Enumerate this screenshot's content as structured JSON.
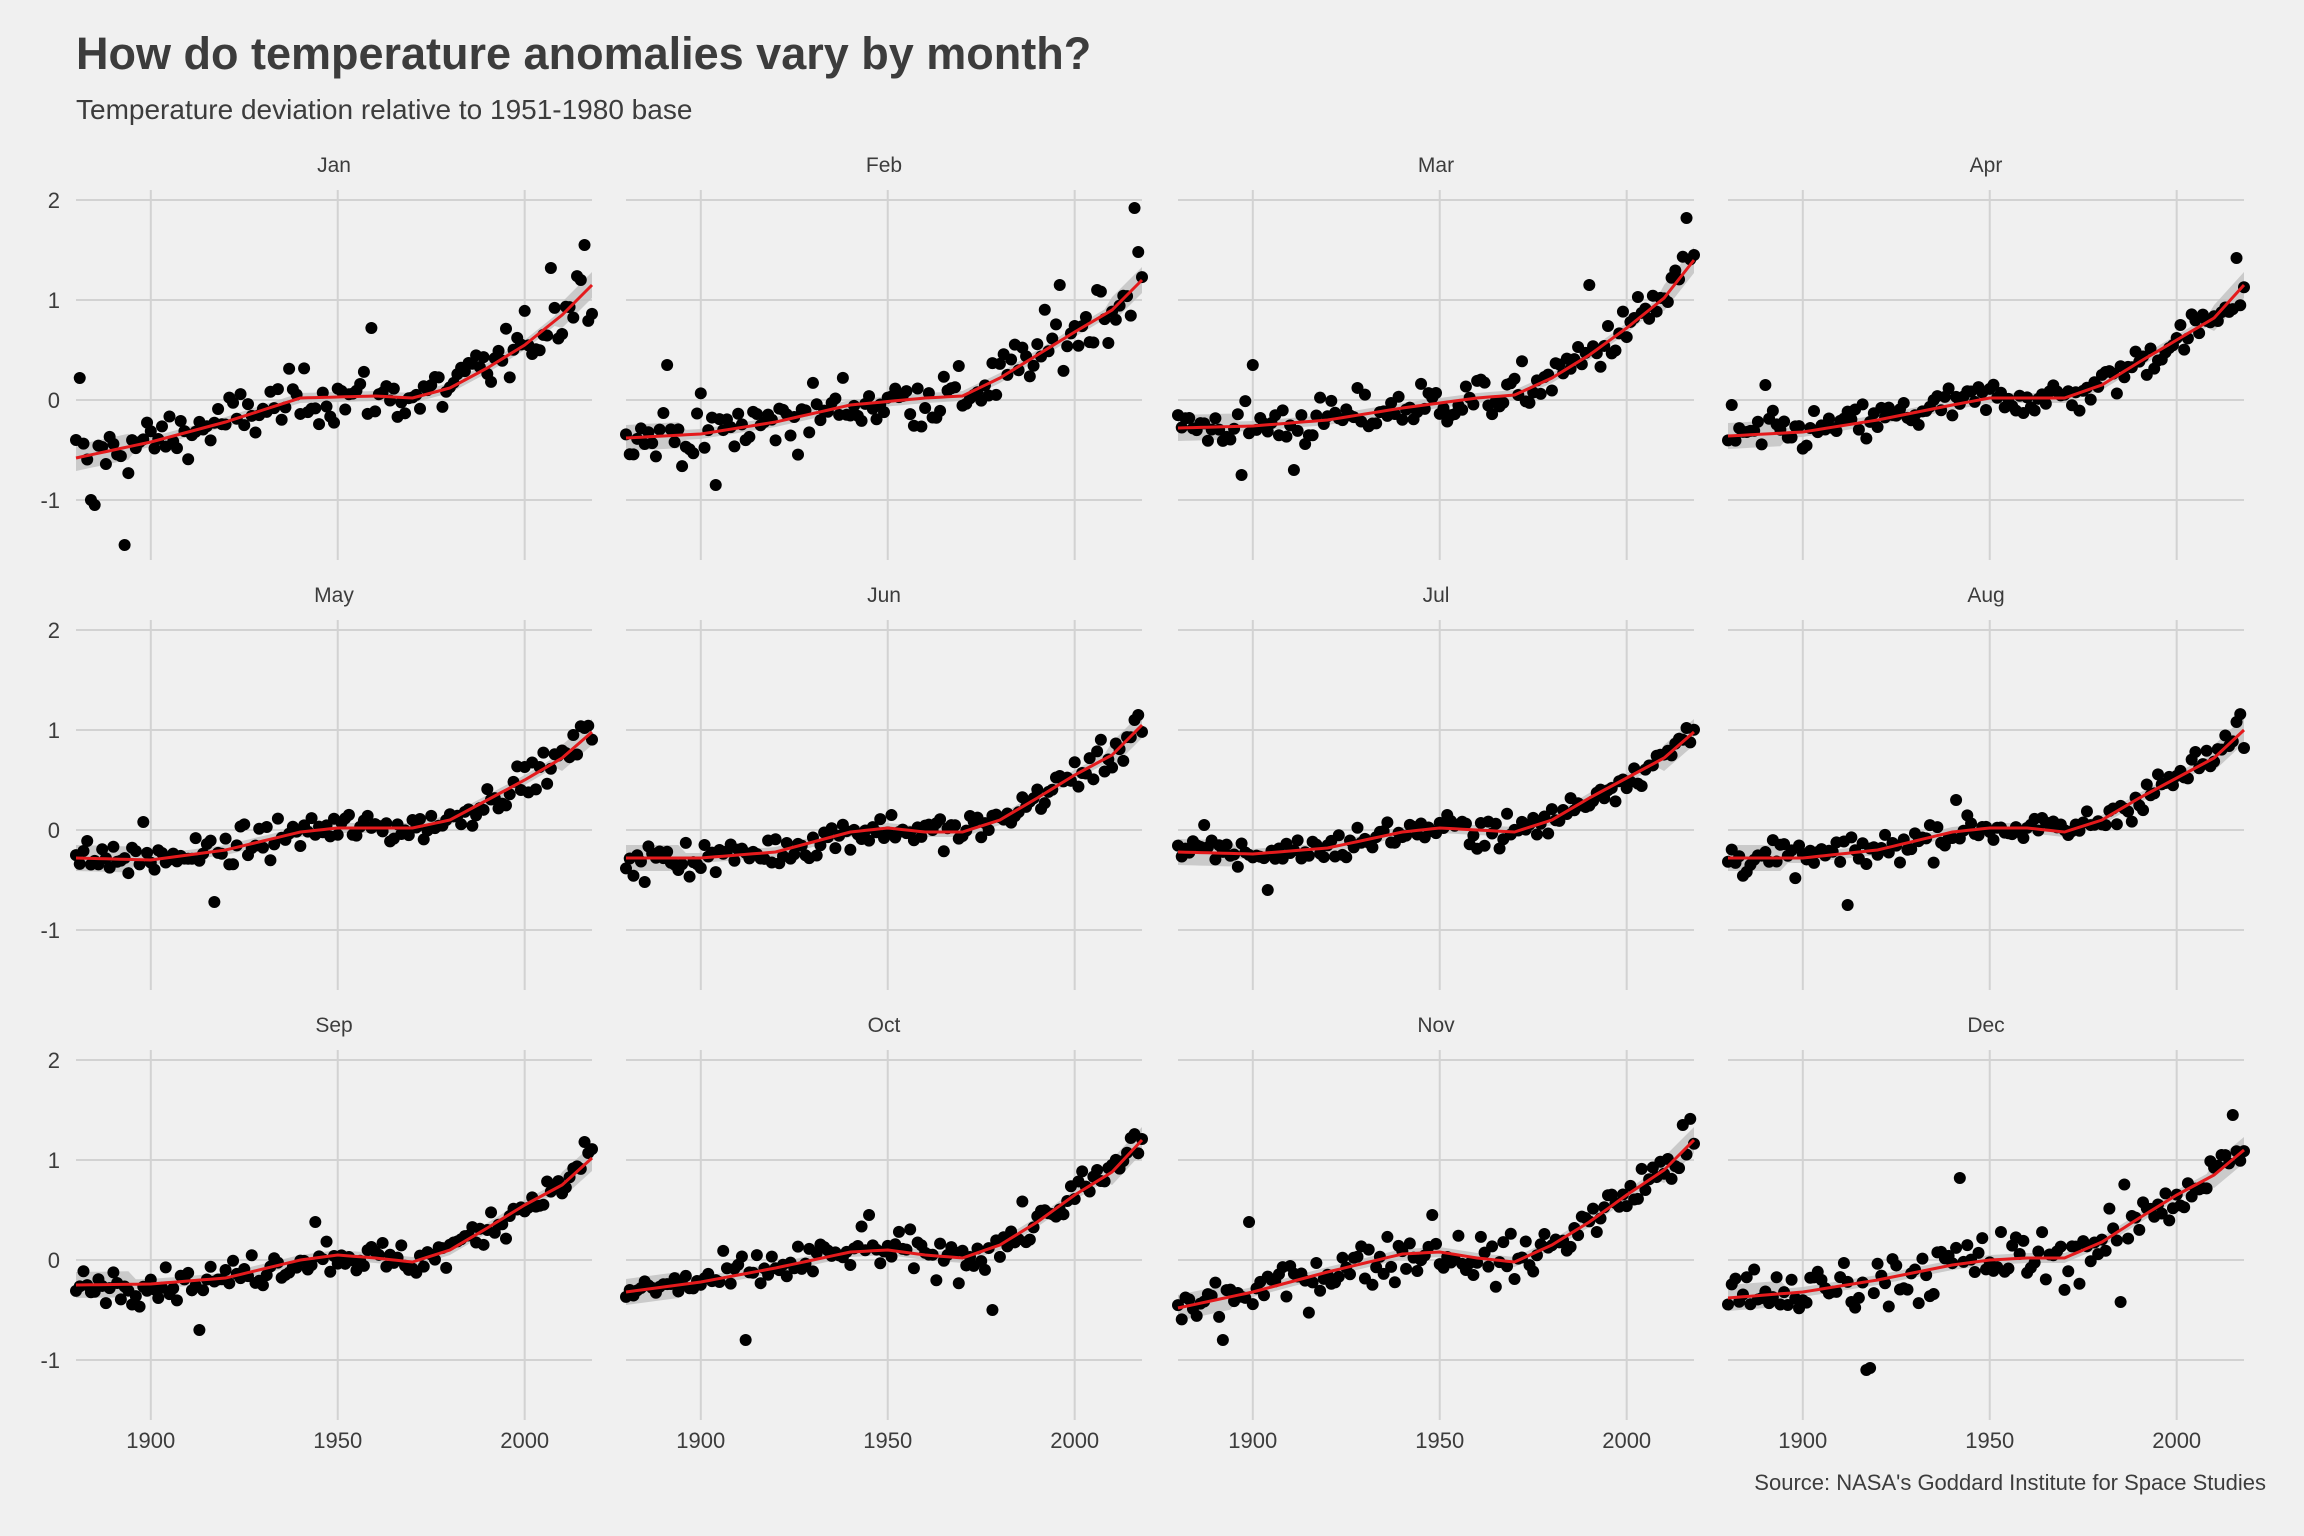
{
  "title": "How do temperature anomalies vary by month?",
  "subtitle": "Temperature deviation relative to 1951-1980 base",
  "caption": "Source: NASA's Goddard Institute for Space Studies",
  "colors": {
    "background": "#f0f0f0",
    "grid": "#d2d2d2",
    "points": "#000000",
    "trend": "#e41a1c",
    "ribbon": "#bdbdbd"
  },
  "chart_data": {
    "type": "scatter",
    "layout": "facet 3x4",
    "xlim": [
      1880,
      2018
    ],
    "ylim": [
      -1.6,
      2.1
    ],
    "x_ticks": [
      1900,
      1950,
      2000
    ],
    "y_ticks": [
      -1,
      0,
      1,
      2
    ],
    "x_tick_labels": [
      "1900",
      "1950",
      "2000"
    ],
    "y_tick_labels": [
      "-1",
      "0",
      "1",
      "2"
    ],
    "trend": "loess smooth with confidence ribbon",
    "grid": true,
    "year_range": [
      1880,
      2018
    ],
    "panels": [
      {
        "month": "Jan",
        "trend": [
          [
            1880,
            -0.58
          ],
          [
            1900,
            -0.42
          ],
          [
            1920,
            -0.22
          ],
          [
            1940,
            0.02
          ],
          [
            1960,
            0.04
          ],
          [
            1970,
            0.02
          ],
          [
            1980,
            0.12
          ],
          [
            1990,
            0.32
          ],
          [
            2000,
            0.55
          ],
          [
            2010,
            0.85
          ],
          [
            2018,
            1.15
          ]
        ],
        "spread": 0.23,
        "highlights": [
          [
            1893,
            -1.45
          ],
          [
            1885,
            -1.05
          ],
          [
            1884,
            -1.0
          ],
          [
            2016,
            1.55
          ],
          [
            1881,
            0.22
          ],
          [
            1959,
            0.72
          ],
          [
            2007,
            1.32
          ],
          [
            2015,
            1.2
          ]
        ]
      },
      {
        "month": "Feb",
        "trend": [
          [
            1880,
            -0.38
          ],
          [
            1900,
            -0.34
          ],
          [
            1920,
            -0.22
          ],
          [
            1940,
            -0.05
          ],
          [
            1960,
            0.02
          ],
          [
            1970,
            0.04
          ],
          [
            1980,
            0.22
          ],
          [
            1990,
            0.45
          ],
          [
            2000,
            0.68
          ],
          [
            2010,
            0.9
          ],
          [
            2018,
            1.2
          ]
        ],
        "spread": 0.25,
        "highlights": [
          [
            2016,
            1.92
          ],
          [
            2017,
            1.48
          ],
          [
            1891,
            0.35
          ],
          [
            1996,
            1.15
          ],
          [
            2006,
            1.1
          ],
          [
            1904,
            -0.85
          ]
        ]
      },
      {
        "month": "Mar",
        "trend": [
          [
            1880,
            -0.28
          ],
          [
            1900,
            -0.26
          ],
          [
            1920,
            -0.2
          ],
          [
            1940,
            -0.08
          ],
          [
            1960,
            0.02
          ],
          [
            1970,
            0.05
          ],
          [
            1980,
            0.22
          ],
          [
            1990,
            0.45
          ],
          [
            2000,
            0.72
          ],
          [
            2010,
            1.02
          ],
          [
            2018,
            1.4
          ]
        ],
        "spread": 0.2,
        "highlights": [
          [
            2016,
            1.82
          ],
          [
            2018,
            1.45
          ],
          [
            1990,
            1.15
          ],
          [
            1900,
            0.35
          ],
          [
            1911,
            -0.7
          ],
          [
            1897,
            -0.75
          ]
        ]
      },
      {
        "month": "Apr",
        "trend": [
          [
            1880,
            -0.36
          ],
          [
            1900,
            -0.32
          ],
          [
            1920,
            -0.2
          ],
          [
            1940,
            -0.05
          ],
          [
            1950,
            0.02
          ],
          [
            1960,
            0.02
          ],
          [
            1970,
            0.02
          ],
          [
            1980,
            0.15
          ],
          [
            1990,
            0.38
          ],
          [
            2000,
            0.6
          ],
          [
            2010,
            0.82
          ],
          [
            2018,
            1.15
          ]
        ],
        "spread": 0.16,
        "highlights": [
          [
            2016,
            1.42
          ],
          [
            1881,
            -0.05
          ],
          [
            1890,
            0.15
          ]
        ]
      },
      {
        "month": "May",
        "trend": [
          [
            1880,
            -0.28
          ],
          [
            1900,
            -0.3
          ],
          [
            1920,
            -0.2
          ],
          [
            1940,
            -0.02
          ],
          [
            1950,
            0.02
          ],
          [
            1960,
            0.02
          ],
          [
            1970,
            0.02
          ],
          [
            1980,
            0.1
          ],
          [
            1990,
            0.3
          ],
          [
            2000,
            0.5
          ],
          [
            2010,
            0.72
          ],
          [
            2018,
            0.98
          ]
        ],
        "spread": 0.14,
        "highlights": [
          [
            1917,
            -0.72
          ],
          [
            2016,
            1.02
          ],
          [
            1898,
            0.08
          ]
        ]
      },
      {
        "month": "Jun",
        "trend": [
          [
            1880,
            -0.28
          ],
          [
            1900,
            -0.28
          ],
          [
            1920,
            -0.22
          ],
          [
            1940,
            -0.02
          ],
          [
            1950,
            0.02
          ],
          [
            1960,
            -0.02
          ],
          [
            1970,
            -0.02
          ],
          [
            1980,
            0.1
          ],
          [
            1990,
            0.32
          ],
          [
            2000,
            0.55
          ],
          [
            2010,
            0.75
          ],
          [
            2018,
            1.05
          ]
        ],
        "spread": 0.14,
        "highlights": [
          [
            2017,
            1.15
          ],
          [
            2016,
            1.1
          ],
          [
            1885,
            -0.52
          ]
        ]
      },
      {
        "month": "Jul",
        "trend": [
          [
            1880,
            -0.22
          ],
          [
            1900,
            -0.24
          ],
          [
            1920,
            -0.18
          ],
          [
            1940,
            -0.02
          ],
          [
            1950,
            0.02
          ],
          [
            1960,
            0.0
          ],
          [
            1970,
            -0.02
          ],
          [
            1980,
            0.1
          ],
          [
            1990,
            0.32
          ],
          [
            2000,
            0.52
          ],
          [
            2010,
            0.72
          ],
          [
            2018,
            0.98
          ]
        ],
        "spread": 0.13,
        "highlights": [
          [
            2016,
            1.02
          ],
          [
            1904,
            -0.6
          ],
          [
            1887,
            0.05
          ]
        ]
      },
      {
        "month": "Aug",
        "trend": [
          [
            1880,
            -0.28
          ],
          [
            1900,
            -0.28
          ],
          [
            1920,
            -0.2
          ],
          [
            1940,
            -0.02
          ],
          [
            1950,
            0.02
          ],
          [
            1960,
            0.02
          ],
          [
            1970,
            -0.02
          ],
          [
            1980,
            0.1
          ],
          [
            1990,
            0.32
          ],
          [
            2000,
            0.52
          ],
          [
            2010,
            0.72
          ],
          [
            2018,
            1.0
          ]
        ],
        "spread": 0.14,
        "highlights": [
          [
            2016,
            1.08
          ],
          [
            1912,
            -0.75
          ],
          [
            1941,
            0.3
          ]
        ]
      },
      {
        "month": "Sep",
        "trend": [
          [
            1880,
            -0.25
          ],
          [
            1900,
            -0.24
          ],
          [
            1920,
            -0.18
          ],
          [
            1940,
            0.0
          ],
          [
            1950,
            0.05
          ],
          [
            1960,
            0.02
          ],
          [
            1970,
            -0.02
          ],
          [
            1980,
            0.1
          ],
          [
            1990,
            0.32
          ],
          [
            2000,
            0.55
          ],
          [
            2010,
            0.75
          ],
          [
            2018,
            1.02
          ]
        ],
        "spread": 0.14,
        "highlights": [
          [
            2016,
            1.18
          ],
          [
            1913,
            -0.7
          ],
          [
            1944,
            0.38
          ]
        ]
      },
      {
        "month": "Oct",
        "trend": [
          [
            1880,
            -0.32
          ],
          [
            1900,
            -0.22
          ],
          [
            1920,
            -0.08
          ],
          [
            1940,
            0.08
          ],
          [
            1950,
            0.1
          ],
          [
            1960,
            0.05
          ],
          [
            1970,
            0.02
          ],
          [
            1980,
            0.15
          ],
          [
            1990,
            0.38
          ],
          [
            2000,
            0.65
          ],
          [
            2010,
            0.88
          ],
          [
            2018,
            1.2
          ]
        ],
        "spread": 0.16,
        "highlights": [
          [
            2015,
            1.22
          ],
          [
            1912,
            -0.8
          ],
          [
            1978,
            -0.5
          ],
          [
            1945,
            0.45
          ]
        ]
      },
      {
        "month": "Nov",
        "trend": [
          [
            1880,
            -0.48
          ],
          [
            1900,
            -0.32
          ],
          [
            1920,
            -0.12
          ],
          [
            1940,
            0.06
          ],
          [
            1950,
            0.08
          ],
          [
            1960,
            0.02
          ],
          [
            1970,
            -0.02
          ],
          [
            1980,
            0.15
          ],
          [
            1990,
            0.38
          ],
          [
            2000,
            0.65
          ],
          [
            2010,
            0.9
          ],
          [
            2018,
            1.2
          ]
        ],
        "spread": 0.2,
        "highlights": [
          [
            2015,
            1.35
          ],
          [
            1892,
            -0.8
          ],
          [
            1899,
            0.38
          ],
          [
            1948,
            0.45
          ]
        ]
      },
      {
        "month": "Dec",
        "trend": [
          [
            1880,
            -0.38
          ],
          [
            1900,
            -0.32
          ],
          [
            1920,
            -0.2
          ],
          [
            1940,
            -0.05
          ],
          [
            1950,
            0.0
          ],
          [
            1960,
            0.02
          ],
          [
            1970,
            0.02
          ],
          [
            1980,
            0.18
          ],
          [
            1990,
            0.42
          ],
          [
            2000,
            0.65
          ],
          [
            2010,
            0.85
          ],
          [
            2018,
            1.1
          ]
        ],
        "spread": 0.24,
        "highlights": [
          [
            1917,
            -1.1
          ],
          [
            1918,
            -1.08
          ],
          [
            2015,
            1.45
          ],
          [
            1942,
            0.82
          ],
          [
            1985,
            -0.42
          ],
          [
            2012,
            1.05
          ]
        ]
      }
    ]
  }
}
